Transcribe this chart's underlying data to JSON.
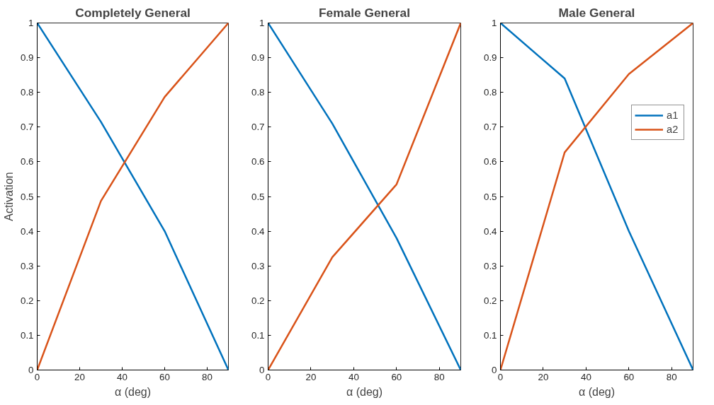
{
  "chart_data": [
    {
      "type": "line",
      "title": "Completely General",
      "xlabel": "α (deg)",
      "ylabel": "Activation",
      "x": [
        0,
        30,
        60,
        90
      ],
      "xlim": [
        0,
        90
      ],
      "ylim": [
        0,
        1
      ],
      "xticks": [
        0,
        20,
        40,
        60,
        80
      ],
      "yticks": [
        0,
        0.1,
        0.2,
        0.3,
        0.4,
        0.5,
        0.6,
        0.7,
        0.8,
        0.9,
        1
      ],
      "grid": false,
      "legend": false,
      "series": [
        {
          "color": "#0072bd",
          "values": [
            1,
            0.715,
            0.4,
            0
          ]
        },
        {
          "color": "#d95319",
          "values": [
            0,
            0.487,
            0.787,
            1
          ]
        }
      ]
    },
    {
      "type": "line",
      "title": "Female General",
      "xlabel": "α (deg)",
      "x": [
        0,
        30,
        60,
        90
      ],
      "xlim": [
        0,
        90
      ],
      "ylim": [
        0,
        1
      ],
      "xticks": [
        0,
        20,
        40,
        60,
        80
      ],
      "yticks": [
        0,
        0.1,
        0.2,
        0.3,
        0.4,
        0.5,
        0.6,
        0.7,
        0.8,
        0.9,
        1
      ],
      "grid": false,
      "legend": false,
      "series": [
        {
          "color": "#0072bd",
          "values": [
            1,
            0.71,
            0.38,
            0
          ]
        },
        {
          "color": "#d95319",
          "values": [
            0,
            0.325,
            0.535,
            1
          ]
        }
      ]
    },
    {
      "type": "line",
      "title": "Male General",
      "xlabel": "α (deg)",
      "x": [
        0,
        30,
        60,
        90
      ],
      "xlim": [
        0,
        90
      ],
      "ylim": [
        0,
        1
      ],
      "xticks": [
        0,
        20,
        40,
        60,
        80
      ],
      "yticks": [
        0,
        0.1,
        0.2,
        0.3,
        0.4,
        0.5,
        0.6,
        0.7,
        0.8,
        0.9,
        1
      ],
      "grid": false,
      "legend": "top right",
      "series": [
        {
          "name": "a1",
          "color": "#0072bd",
          "values": [
            1,
            0.84,
            0.4,
            0
          ]
        },
        {
          "name": "a2",
          "color": "#d95319",
          "values": [
            0,
            0.627,
            0.853,
            1
          ]
        }
      ]
    }
  ]
}
